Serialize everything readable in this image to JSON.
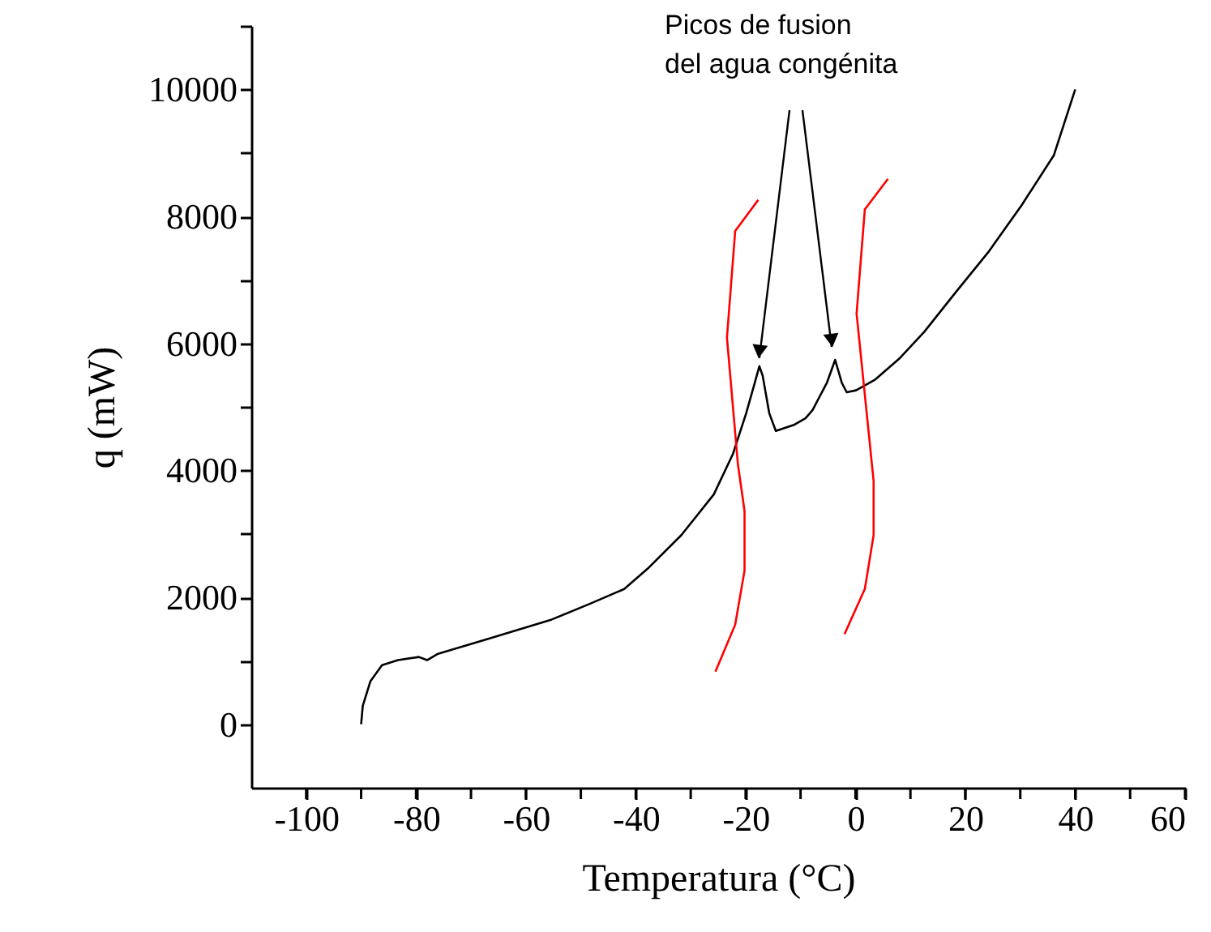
{
  "chart_data": {
    "type": "line",
    "xlabel": "Temperatura (°C)",
    "ylabel": "q (mW)",
    "annotations": [
      {
        "text": "Picos de fusion\ndel agua congénita",
        "x": -17.5,
        "y": 5640
      }
    ],
    "xlim": [
      -110,
      60
    ],
    "ylim": [
      -1000,
      11000
    ],
    "xticks": [
      -100,
      {
        "value": -90,
        "label": null
      },
      -80,
      {
        "value": -70,
        "label": null
      },
      -60,
      {
        "value": -50,
        "label": null
      },
      -40,
      {
        "value": -30,
        "label": null
      },
      -20,
      {
        "value": -10,
        "label": null
      },
      0,
      {
        "value": 10,
        "label": null
      },
      20,
      {
        "value": 30,
        "label": null
      },
      40,
      {
        "value": 50,
        "label": null
      },
      60
    ],
    "yticks": [
      0,
      {
        "value": 1000,
        "label": null
      },
      2000,
      {
        "value": 3000,
        "label": null
      },
      4000,
      {
        "value": 5000,
        "label": null
      },
      6000,
      {
        "value": 7000,
        "label": null
      },
      8000,
      {
        "value": 9000,
        "label": null
      },
      10000,
      {
        "value": 11000,
        "label": null
      }
    ],
    "grid": false,
    "legend": false,
    "marker": "none",
    "line_style": "solid",
    "series": [
      {
        "color": "#000000",
        "x": [
          -90,
          -89.7,
          -88.3,
          -86.2,
          -83.3,
          -79.5,
          -78,
          -76,
          -67.1,
          -55.3,
          -48.3,
          -42.1,
          -37.6,
          -31.7,
          -25.8,
          -22.3,
          -19.9,
          -18.4,
          -17.5,
          -16.9,
          -15.7,
          -14.5,
          -11.1,
          -9.1,
          -7.8,
          -6.6,
          -5.2,
          -3.7,
          -2.5,
          -1.6,
          0.1,
          3.6,
          8.1,
          12.5,
          18.4,
          24.3,
          30.2,
          36.1,
          40
        ],
        "values": [
          0,
          290,
          680,
          930,
          1010,
          1060,
          1010,
          1110,
          1340,
          1650,
          1900,
          2130,
          2470,
          2980,
          3620,
          4260,
          4900,
          5360,
          5640,
          5490,
          4900,
          4620,
          4720,
          4820,
          4950,
          5150,
          5380,
          5740,
          5380,
          5230,
          5260,
          5430,
          5770,
          6180,
          6820,
          7450,
          8170,
          8960,
          10000
        ]
      },
      {
        "color": "#ff0000",
        "x": [
          -25.5,
          -21.9,
          -20.2,
          -20.2,
          -21.4,
          -23.4,
          -21.9,
          -17.7
        ],
        "values": [
          830,
          1570,
          2420,
          3360,
          4090,
          6090,
          7770,
          8260
        ]
      },
      {
        "color": "#ff0000",
        "x": [
          -2.0,
          1.7,
          3.3,
          3.3,
          0.2,
          1.7,
          5.9
        ],
        "values": [
          1420,
          2130,
          2980,
          3830,
          6470,
          8110,
          8590
        ]
      }
    ]
  }
}
